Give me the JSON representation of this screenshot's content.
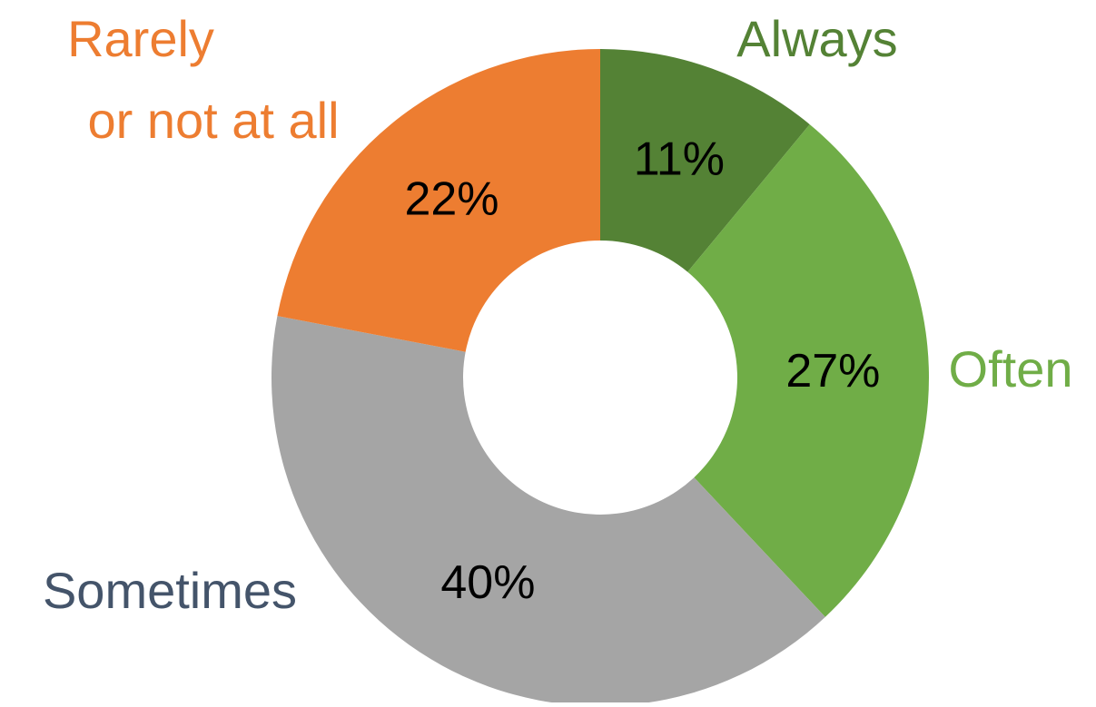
{
  "chart_data": {
    "type": "pie",
    "variant": "donut",
    "legend": "none",
    "slices": [
      {
        "label": "Always",
        "value": 11,
        "value_label": "11%",
        "color": "#548235"
      },
      {
        "label": "Often",
        "value": 27,
        "value_label": "27%",
        "color": "#70AD47"
      },
      {
        "label": "Sometimes",
        "value": 40,
        "value_label": "40%",
        "color": "#A5A5A5"
      },
      {
        "label": "Rarely",
        "label_line2": "or not at all",
        "value": 22,
        "value_label": "22%",
        "color": "#ED7D31"
      }
    ],
    "label_colors": {
      "Always": "#548235",
      "Often": "#70AD47",
      "Sometimes": "#44546A",
      "Rarely": "#ED7D31"
    },
    "value_label_color": "#000000"
  }
}
